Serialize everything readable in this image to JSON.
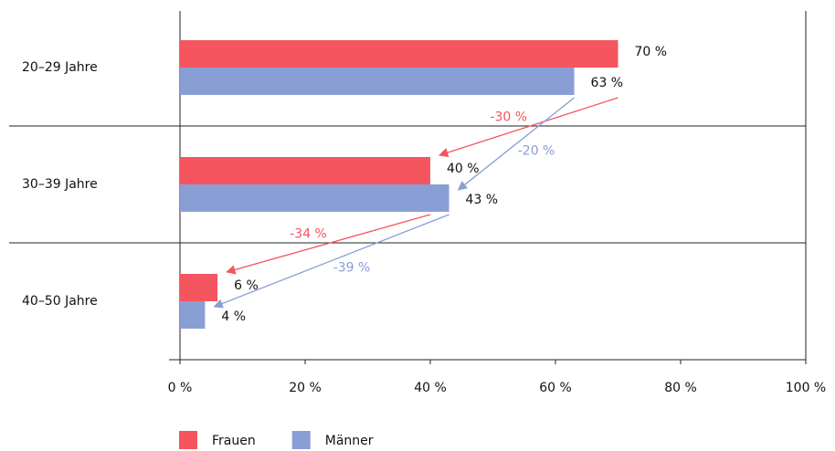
{
  "chart_data": {
    "type": "bar",
    "orientation": "horizontal",
    "categories": [
      "20–29 Jahre",
      "30–39 Jahre",
      "40–50 Jahre"
    ],
    "series": [
      {
        "name": "Frauen",
        "color": "#f4555f",
        "values": [
          70,
          40,
          6
        ],
        "value_labels": [
          "70 %",
          "40 %",
          "6 %"
        ]
      },
      {
        "name": "Männer",
        "color": "#8a9ed6",
        "values": [
          63,
          43,
          4
        ],
        "value_labels": [
          "63 %",
          "43 %",
          "4 %"
        ]
      }
    ],
    "xlim": [
      0,
      100
    ],
    "xticks": [
      {
        "value": 0,
        "label": "0 %"
      },
      {
        "value": 20,
        "label": "20 %"
      },
      {
        "value": 40,
        "label": "40 %"
      },
      {
        "value": 60,
        "label": "60 %"
      },
      {
        "value": 80,
        "label": "80 %"
      },
      {
        "value": 100,
        "label": "100 %"
      }
    ],
    "annotations": [
      {
        "text": "-30 %",
        "color": "#f4555f"
      },
      {
        "text": "-20 %",
        "color": "#8a9ed6"
      },
      {
        "text": "-34 %",
        "color": "#f4555f"
      },
      {
        "text": "-39 %",
        "color": "#8a9ed6"
      }
    ],
    "legend": "bottom"
  }
}
